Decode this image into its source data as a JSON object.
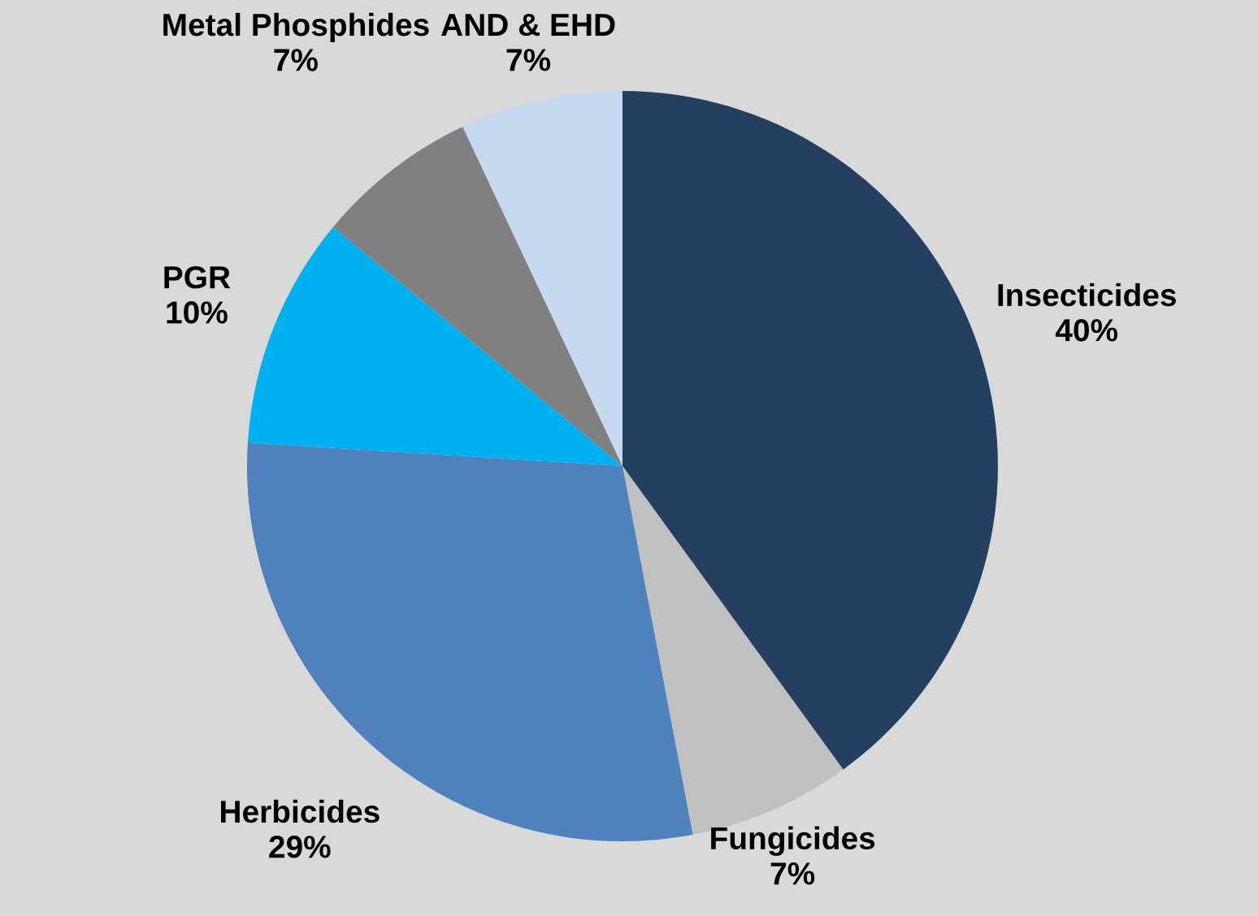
{
  "chart_data": {
    "type": "pie",
    "categories": [
      "Insecticides",
      "Fungicides",
      "Herbicides",
      "PGR",
      "Metal Phosphides",
      "AND & EHD"
    ],
    "values": [
      40,
      7,
      29,
      10,
      7,
      7
    ],
    "colors": [
      "#243f60",
      "#c0c0c0",
      "#4f81bd",
      "#00b0f0",
      "#808080",
      "#c6d9f1"
    ],
    "value_labels": [
      "40%",
      "7%",
      "29%",
      "10%",
      "7%",
      "7%"
    ]
  }
}
